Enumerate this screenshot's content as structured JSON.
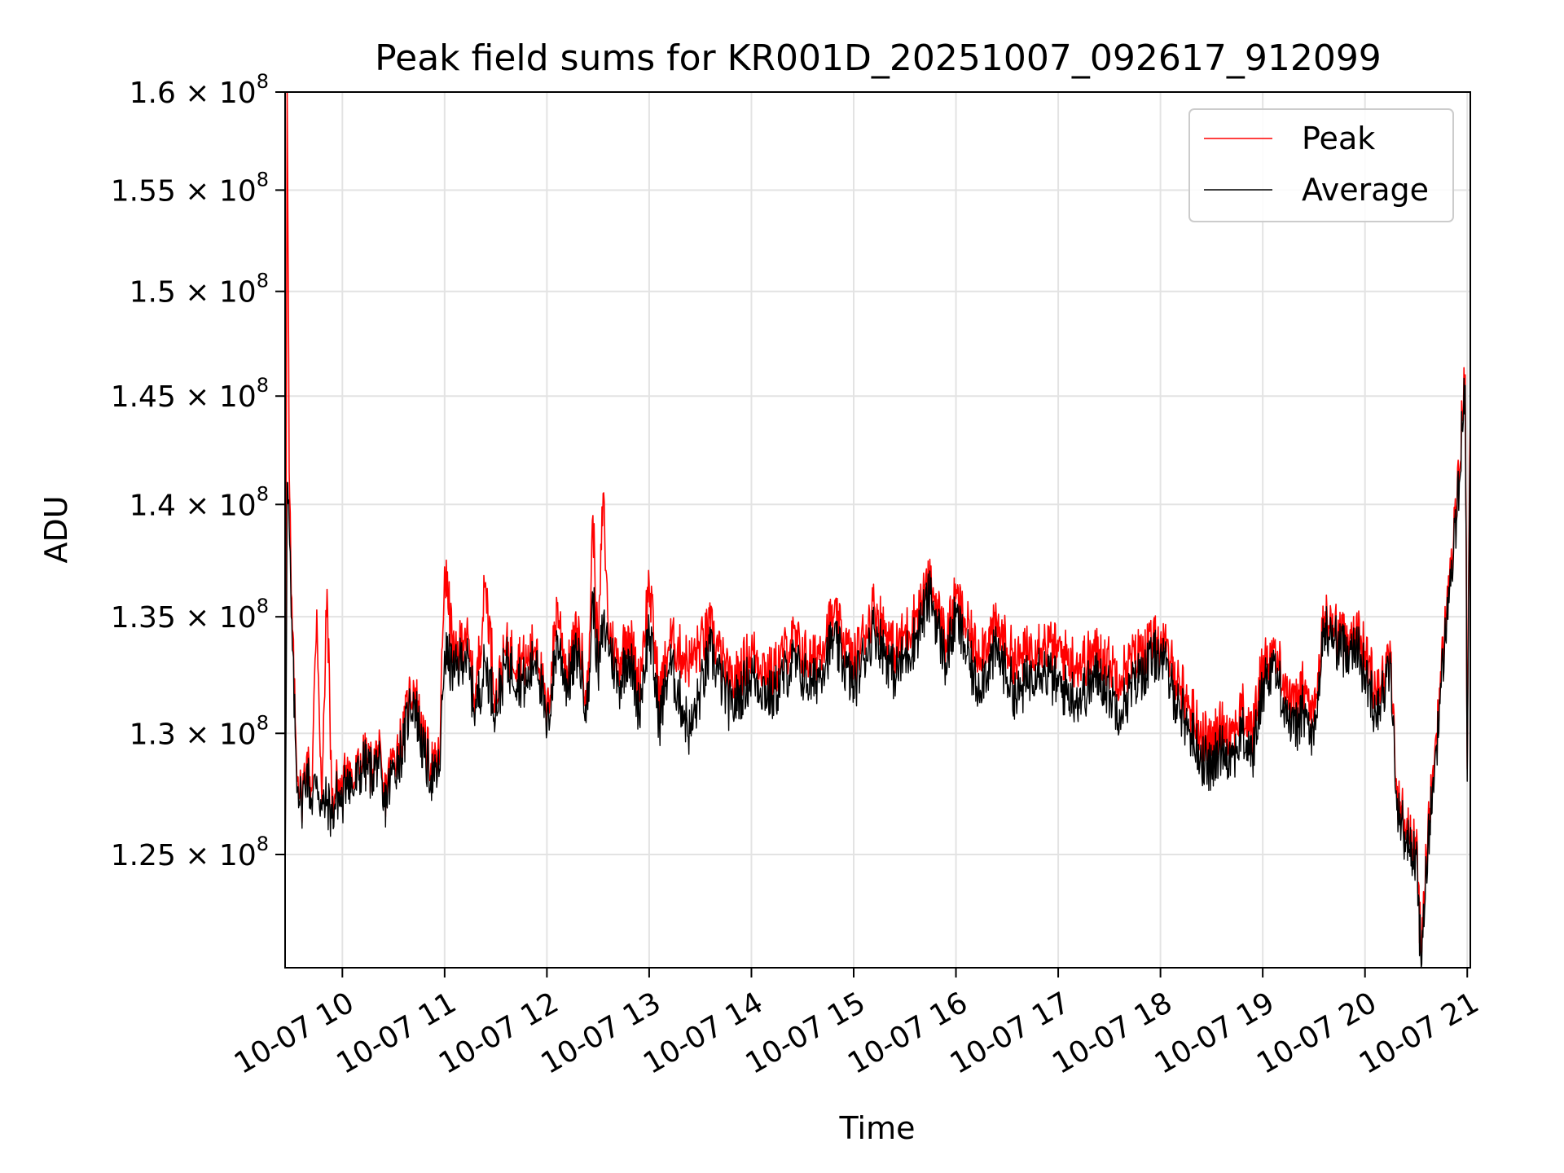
{
  "chart_data": {
    "type": "line",
    "title": "Peak field sums for KR001D_20251007_092617_912099",
    "xlabel": "Time",
    "ylabel": "ADU",
    "grid": true,
    "legend_position": "top-right",
    "x_unit": "hours",
    "xlim": [
      9.44,
      21.03
    ],
    "ylim": [
      120500000.0,
      160000000.0
    ],
    "y_scale": "log",
    "x_ticks": [
      {
        "value": 10,
        "label": "10-07 10"
      },
      {
        "value": 11,
        "label": "10-07 11"
      },
      {
        "value": 12,
        "label": "10-07 12"
      },
      {
        "value": 13,
        "label": "10-07 13"
      },
      {
        "value": 14,
        "label": "10-07 14"
      },
      {
        "value": 15,
        "label": "10-07 15"
      },
      {
        "value": 16,
        "label": "10-07 16"
      },
      {
        "value": 17,
        "label": "10-07 17"
      },
      {
        "value": 18,
        "label": "10-07 18"
      },
      {
        "value": 19,
        "label": "10-07 19"
      },
      {
        "value": 20,
        "label": "10-07 20"
      },
      {
        "value": 21,
        "label": "10-07 21"
      }
    ],
    "y_ticks": [
      {
        "value": 125000000.0,
        "mantissa": "1.25",
        "exponent": "8"
      },
      {
        "value": 130000000.0,
        "mantissa": "1.3",
        "exponent": "8"
      },
      {
        "value": 135000000.0,
        "mantissa": "1.35",
        "exponent": "8"
      },
      {
        "value": 140000000.0,
        "mantissa": "1.4",
        "exponent": "8"
      },
      {
        "value": 145000000.0,
        "mantissa": "1.45",
        "exponent": "8"
      },
      {
        "value": 150000000.0,
        "mantissa": "1.5",
        "exponent": "8"
      },
      {
        "value": 155000000.0,
        "mantissa": "1.55",
        "exponent": "8"
      },
      {
        "value": 160000000.0,
        "mantissa": "1.6",
        "exponent": "8"
      }
    ],
    "series": [
      {
        "name": "Peak",
        "color": "#ff0000",
        "x": [
          9.44,
          9.46,
          9.48,
          9.5,
          9.55,
          9.6,
          9.65,
          9.7,
          9.75,
          9.8,
          9.85,
          9.9,
          9.95,
          10.0,
          10.05,
          10.1,
          10.2,
          10.3,
          10.35,
          10.4,
          10.5,
          10.6,
          10.65,
          10.7,
          10.8,
          10.9,
          10.95,
          11.0,
          11.1,
          11.2,
          11.3,
          11.4,
          11.5,
          11.6,
          11.8,
          11.9,
          12.0,
          12.1,
          12.2,
          12.3,
          12.4,
          12.45,
          12.5,
          12.55,
          12.6,
          12.7,
          12.8,
          12.9,
          13.0,
          13.1,
          13.2,
          13.4,
          13.6,
          13.8,
          14.0,
          14.2,
          14.4,
          14.6,
          14.8,
          15.0,
          15.2,
          15.4,
          15.6,
          15.75,
          15.9,
          16.0,
          16.2,
          16.4,
          16.6,
          16.8,
          17.0,
          17.2,
          17.4,
          17.6,
          17.8,
          18.0,
          18.1,
          18.2,
          18.3,
          18.4,
          18.5,
          18.6,
          18.7,
          18.8,
          18.9,
          19.0,
          19.1,
          19.2,
          19.3,
          19.4,
          19.5,
          19.6,
          19.7,
          19.8,
          19.9,
          20.0,
          20.1,
          20.2,
          20.25,
          20.3,
          20.4,
          20.5,
          20.55,
          20.6,
          20.7,
          20.8,
          20.9,
          20.95,
          20.98,
          21.0,
          21.03
        ],
        "values": [
          123000000.0,
          160000000.0,
          141500000.0,
          136000000.0,
          129000000.0,
          127200000.0,
          129000000.0,
          127600000.0,
          135300000.0,
          127000000.0,
          136200000.0,
          126800000.0,
          128000000.0,
          127500000.0,
          129000000.0,
          127800000.0,
          129000000.0,
          128500000.0,
          129500000.0,
          127200000.0,
          129000000.0,
          130000000.0,
          131500000.0,
          132000000.0,
          129500000.0,
          128500000.0,
          129000000.0,
          137200000.0,
          133000000.0,
          134500000.0,
          131500000.0,
          136500000.0,
          131500000.0,
          133600000.0,
          133000000.0,
          134000000.0,
          130500000.0,
          135500000.0,
          132500000.0,
          134500000.0,
          131500000.0,
          139500000.0,
          133000000.0,
          140500000.0,
          134500000.0,
          133000000.0,
          134500000.0,
          132000000.0,
          136500000.0,
          131500000.0,
          134000000.0,
          133000000.0,
          134500000.0,
          132000000.0,
          133500000.0,
          132500000.0,
          134000000.0,
          133000000.0,
          135000000.0,
          133000000.0,
          135500000.0,
          133500000.0,
          135000000.0,
          136500000.0,
          134000000.0,
          135800000.0,
          133500000.0,
          134500000.0,
          133000000.0,
          134000000.0,
          133500000.0,
          133000000.0,
          133500000.0,
          132500000.0,
          133500000.0,
          134000000.0,
          133000000.0,
          132000000.0,
          131000000.0,
          130000000.0,
          129500000.0,
          130500000.0,
          130000000.0,
          131000000.0,
          130000000.0,
          133000000.0,
          133500000.0,
          132500000.0,
          131000000.0,
          132000000.0,
          130500000.0,
          135000000.0,
          134500000.0,
          134000000.0,
          134500000.0,
          133500000.0,
          132000000.0,
          132500000.0,
          133500000.0,
          128000000.0,
          126000000.0,
          125500000.0,
          121000000.0,
          125000000.0,
          130000000.0,
          135500000.0,
          140000000.0,
          144000000.0,
          146000000.0,
          128500000.0,
          144000000.0
        ]
      },
      {
        "name": "Average",
        "color": "#000000",
        "x": [
          9.44,
          9.46,
          9.48,
          9.5,
          9.55,
          9.6,
          9.65,
          9.7,
          9.75,
          9.8,
          9.85,
          9.9,
          9.95,
          10.0,
          10.05,
          10.1,
          10.2,
          10.3,
          10.35,
          10.4,
          10.5,
          10.6,
          10.65,
          10.7,
          10.8,
          10.9,
          10.95,
          11.0,
          11.1,
          11.2,
          11.3,
          11.4,
          11.5,
          11.6,
          11.8,
          11.9,
          12.0,
          12.1,
          12.2,
          12.3,
          12.4,
          12.45,
          12.5,
          12.55,
          12.6,
          12.7,
          12.8,
          12.9,
          13.0,
          13.1,
          13.2,
          13.4,
          13.6,
          13.8,
          14.0,
          14.2,
          14.4,
          14.6,
          14.8,
          15.0,
          15.2,
          15.4,
          15.6,
          15.75,
          15.9,
          16.0,
          16.2,
          16.4,
          16.6,
          16.8,
          17.0,
          17.2,
          17.4,
          17.6,
          17.8,
          18.0,
          18.1,
          18.2,
          18.3,
          18.4,
          18.5,
          18.6,
          18.7,
          18.8,
          18.9,
          19.0,
          19.1,
          19.2,
          19.3,
          19.4,
          19.5,
          19.6,
          19.7,
          19.8,
          19.9,
          20.0,
          20.1,
          20.2,
          20.25,
          20.3,
          20.4,
          20.5,
          20.55,
          20.6,
          20.7,
          20.8,
          20.9,
          20.95,
          20.98,
          21.0,
          21.03
        ],
        "values": [
          123000000.0,
          141000000.0,
          139000000.0,
          135000000.0,
          128500000.0,
          127000000.0,
          128500000.0,
          127200000.0,
          128200000.0,
          126800000.0,
          127200000.0,
          126500000.0,
          127500000.0,
          127000000.0,
          128500000.0,
          127500000.0,
          128700000.0,
          128300000.0,
          129000000.0,
          126800000.0,
          128500000.0,
          129500000.0,
          131000000.0,
          131500000.0,
          129000000.0,
          128000000.0,
          128500000.0,
          133500000.0,
          132500000.0,
          133500000.0,
          131000000.0,
          133000000.0,
          131000000.0,
          133000000.0,
          132000000.0,
          133500000.0,
          130000000.0,
          134000000.0,
          132000000.0,
          133500000.0,
          131000000.0,
          136000000.0,
          132500000.0,
          134500000.0,
          134000000.0,
          132000000.0,
          133500000.0,
          131000000.0,
          134500000.0,
          130500000.0,
          133000000.0,
          130000000.0,
          133500000.0,
          131000000.0,
          132500000.0,
          131500000.0,
          133000000.0,
          132000000.0,
          134000000.0,
          132000000.0,
          134500000.0,
          132500000.0,
          134000000.0,
          136000000.0,
          133000000.0,
          135000000.0,
          132000000.0,
          133500000.0,
          131500000.0,
          133000000.0,
          132000000.0,
          131500000.0,
          132500000.0,
          131000000.0,
          132500000.0,
          133500000.0,
          132000000.0,
          131000000.0,
          130000000.0,
          129000000.0,
          128500000.0,
          129500000.0,
          129000000.0,
          130000000.0,
          129000000.0,
          132000000.0,
          133000000.0,
          131500000.0,
          130000000.0,
          131000000.0,
          129500000.0,
          134500000.0,
          134000000.0,
          133500000.0,
          134000000.0,
          132500000.0,
          131000000.0,
          132000000.0,
          133000000.0,
          127500000.0,
          125500000.0,
          125000000.0,
          120500000.0,
          124500000.0,
          129500000.0,
          135000000.0,
          139500000.0,
          143500000.0,
          145500000.0,
          128000000.0,
          143000000.0
        ]
      }
    ]
  }
}
